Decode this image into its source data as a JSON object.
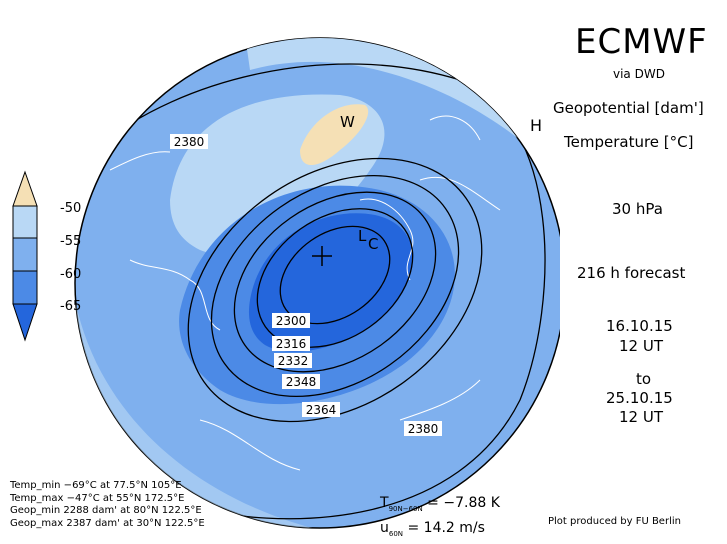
{
  "header": {
    "brand": "ECMWF",
    "source": "via DWD",
    "field1": "Geopotential [dam']",
    "field2": "Temperature [°C]",
    "level": "30 hPa",
    "forecast": "216 h forecast",
    "init_date": "16.10.15",
    "init_time": "12 UT",
    "to": "to",
    "valid_date": "25.10.15",
    "valid_time": "12 UT"
  },
  "colorbar": {
    "labels": [
      "-50",
      "-55",
      "-60",
      "-65"
    ],
    "colors": {
      "warmest": "#f5e0b5",
      "c1": "#b9d8f5",
      "c2": "#7fb0ee",
      "c3": "#4c8ae6",
      "c4": "#2466dc"
    }
  },
  "map": {
    "contour_labels": [
      "2380",
      "2300",
      "2316",
      "2332",
      "2348",
      "2364",
      "2380"
    ],
    "markers": {
      "low1": "L",
      "low2": "C",
      "warm": "W",
      "high": "H",
      "pole": "+"
    }
  },
  "extremes": [
    "Temp_min −69°C at 77.5°N 105°E",
    "Temp_max −47°C at 55°N 172.5°E",
    "Geop_min 2288 dam' at 80°N 122.5°E",
    "Geop_max 2387 dam' at 30°N 122.5°E"
  ],
  "stats": {
    "t_label": "T",
    "t_sub": "90N−60N",
    "t_value": " = −7.88 K",
    "u_label": "u",
    "u_sub": "60N",
    "u_value": " = 14.2 m/s"
  },
  "credit": "Plot produced by FU Berlin"
}
